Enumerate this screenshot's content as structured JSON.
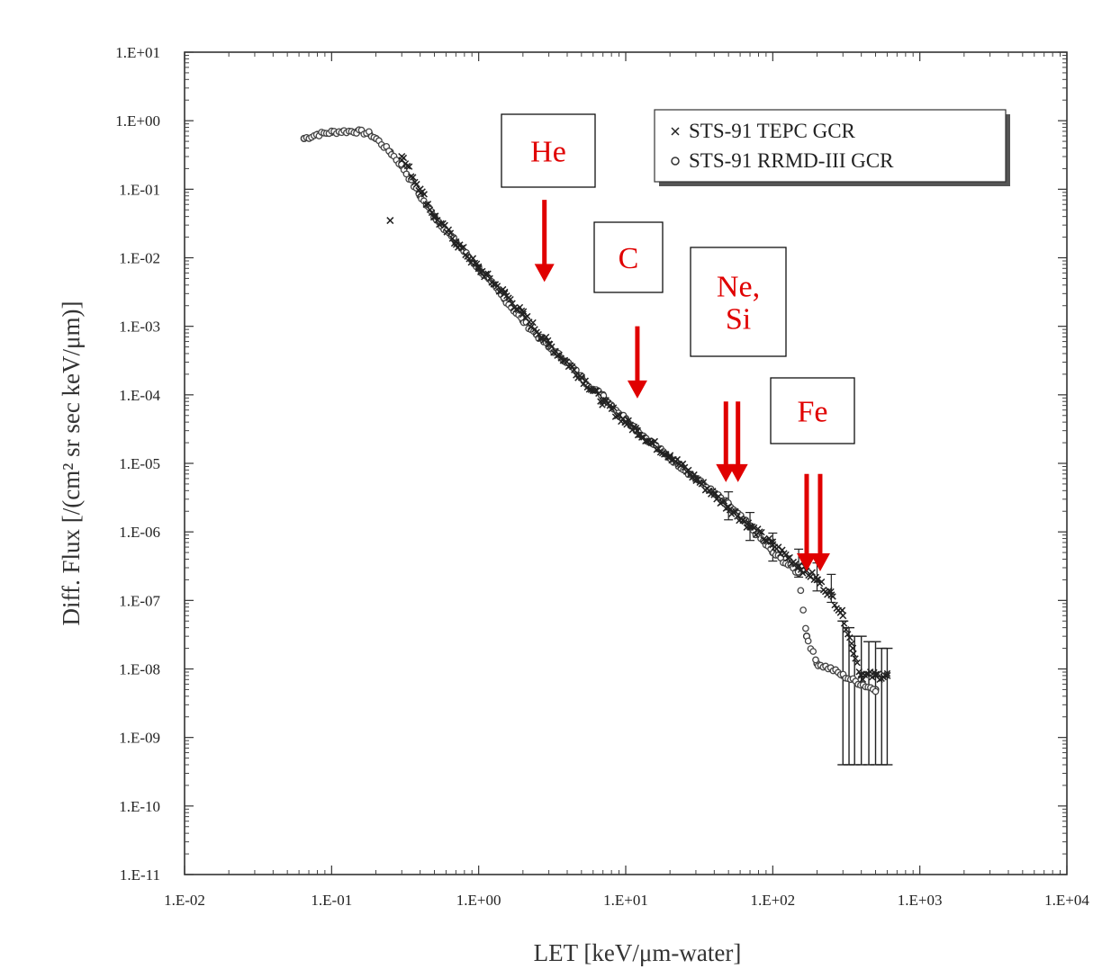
{
  "chart_data": {
    "type": "scatter",
    "title": "",
    "xlabel": "LET [keV/μm-water]",
    "ylabel": "Diff. Flux [/(cm² sr sec keV/μm)]",
    "xscale": "log",
    "yscale": "log",
    "xlim": [
      0.01,
      10000
    ],
    "ylim": [
      1e-11,
      10
    ],
    "xticks": [
      "1.E-02",
      "1.E-01",
      "1.E+00",
      "1.E+01",
      "1.E+02",
      "1.E+03",
      "1.E+04"
    ],
    "yticks": [
      "1.E+01",
      "1.E+00",
      "1.E-01",
      "1.E-02",
      "1.E-03",
      "1.E-04",
      "1.E-05",
      "1.E-06",
      "1.E-07",
      "1.E-08",
      "1.E-09",
      "1.E-10",
      "1.E-11"
    ],
    "grid": false,
    "legend_position": "top-right",
    "series": [
      {
        "name": "STS-91 TEPC GCR",
        "marker": "x",
        "x": [
          0.25,
          0.3,
          0.4,
          0.5,
          0.7,
          1.0,
          1.5,
          2.0,
          3.0,
          5.0,
          7.0,
          10,
          12,
          15,
          20,
          30,
          40,
          50,
          70,
          100,
          150,
          200,
          250,
          300,
          350,
          400,
          500,
          600
        ],
        "y": [
          0.035,
          0.3,
          0.1,
          0.04,
          0.017,
          0.007,
          0.003,
          0.0015,
          0.00055,
          0.00018,
          8e-05,
          4e-05,
          3e-05,
          2e-05,
          1.3e-05,
          6e-06,
          3.5e-06,
          2.3e-06,
          1.2e-06,
          6.5e-07,
          3.2e-07,
          2e-07,
          1.2e-07,
          6e-08,
          2e-08,
          8e-09,
          8e-09,
          8e-09
        ]
      },
      {
        "name": "STS-91 RRMD-III GCR",
        "marker": "o",
        "x": [
          0.065,
          0.08,
          0.1,
          0.12,
          0.15,
          0.18,
          0.2,
          0.25,
          0.3,
          0.4,
          0.5,
          0.7,
          1.0,
          1.5,
          2.0,
          3.0,
          4.0,
          5.0,
          6.0,
          7.0,
          8.0,
          10,
          12,
          15,
          20,
          30,
          50,
          70,
          100,
          150,
          170,
          200,
          250,
          300,
          400,
          500
        ],
        "y": [
          0.55,
          0.63,
          0.68,
          0.7,
          0.7,
          0.65,
          0.55,
          0.35,
          0.22,
          0.08,
          0.04,
          0.017,
          0.007,
          0.0025,
          0.0012,
          0.0005,
          0.0003,
          0.00018,
          0.00012,
          0.0001,
          7e-05,
          4.5e-05,
          3e-05,
          2e-05,
          1.2e-05,
          6e-06,
          2.5e-06,
          1.2e-06,
          5e-07,
          2.5e-07,
          3e-08,
          1.2e-08,
          1e-08,
          8e-09,
          6e-09,
          5e-09
        ]
      }
    ],
    "error_bars": {
      "x": [
        300,
        330,
        360,
        400,
        450,
        500,
        550,
        600
      ],
      "upper": [
        5e-08,
        4e-08,
        3e-08,
        3e-08,
        2.5e-08,
        2.5e-08,
        2e-08,
        2e-08
      ],
      "lower": [
        4e-10,
        4e-10,
        4e-10,
        4e-10,
        4e-10,
        4e-10,
        4e-10,
        4e-10
      ]
    },
    "annotations": [
      {
        "id": "he",
        "label": "He",
        "arrows_x": [
          2.8
        ],
        "arrow_y_top": 0.07,
        "arrow_y_bottom": 0.005
      },
      {
        "id": "c",
        "label": "C",
        "arrows_x": [
          12
        ],
        "arrow_y_top": 0.001,
        "arrow_y_bottom": 0.0001
      },
      {
        "id": "nesi",
        "label": "Ne,\nSi",
        "arrows_x": [
          48,
          58
        ],
        "arrow_y_top": 8e-05,
        "arrow_y_bottom": 6e-06
      },
      {
        "id": "fe",
        "label": "Fe",
        "arrows_x": [
          170,
          210
        ],
        "arrow_y_top": 7e-06,
        "arrow_y_bottom": 3e-07
      }
    ]
  }
}
